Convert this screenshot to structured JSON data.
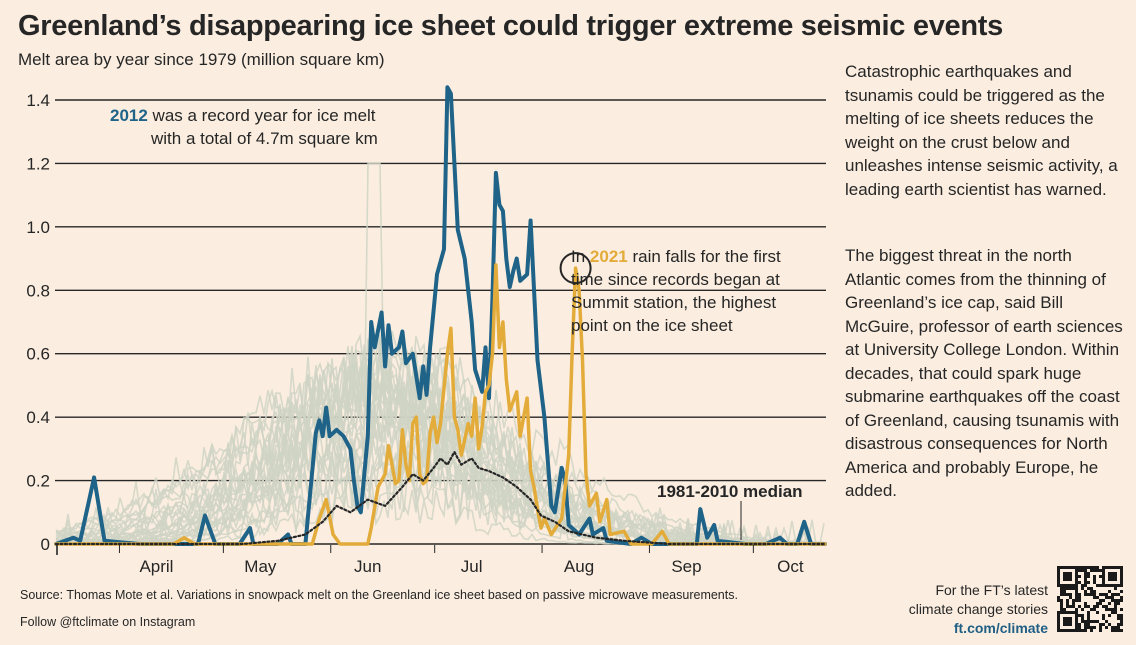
{
  "header": {
    "title": "Greenland’s disappearing ice sheet could trigger extreme seismic events",
    "subtitle": "Melt area by year since 1979 (million square km)"
  },
  "sidebar": {
    "paragraph_1": "Catastrophic earthquakes and tsunamis could be triggered as the melting of ice sheets reduces the weight on the crust below and unleashes intense seismic activity, a leading earth scientist has warned.",
    "paragraph_2": "The biggest threat in the north Atlantic comes from the thinning of Greenland’s ice cap, said Bill McGuire, professor of earth sciences at University College London. Within decades, that could spark huge submarine earthquakes off the coast of Greenland, causing tsunamis with disastrous consequences for North America and probably Europe, he added."
  },
  "footer": {
    "source": "Source: Thomas Mote et al. Variations in snowpack melt on the Greenland ice sheet based on passive microwave measurements.",
    "follow": "Follow @ftclimate on Instagram",
    "promo_line_1": "For the FT’s latest",
    "promo_line_2": "climate change stories",
    "promo_link": "ft.com/climate"
  },
  "colors": {
    "background": "#fbeee0",
    "series_2012": "#1f6388",
    "series_2021": "#e3ac3a",
    "other_years": "#cfd3c4",
    "median": "#262626"
  },
  "chart_data": {
    "type": "line",
    "ylim": [
      0,
      1.45
    ],
    "yticks": [
      {
        "value": 0,
        "label": "0"
      },
      {
        "value": 0.2,
        "label": "0.2"
      },
      {
        "value": 0.4,
        "label": "0.4"
      },
      {
        "value": 0.6,
        "label": "0.6"
      },
      {
        "value": 0.8,
        "label": "0.8"
      },
      {
        "value": 1.0,
        "label": "1.0"
      },
      {
        "value": 1.2,
        "label": "1.2"
      },
      {
        "value": 1.4,
        "label": "1.4"
      }
    ],
    "xlim": [
      "03-17",
      "10-25"
    ],
    "xticks": [
      {
        "date": "04-15",
        "label": "April"
      },
      {
        "date": "05-15",
        "label": "May"
      },
      {
        "date": "06-15",
        "label": "Jun"
      },
      {
        "date": "07-15",
        "label": "Jul"
      },
      {
        "date": "08-15",
        "label": "Aug"
      },
      {
        "date": "09-15",
        "label": "Sep"
      },
      {
        "date": "10-15",
        "label": "Oct"
      }
    ],
    "annotations": {
      "a2012_year": "2012",
      "a2012_line1": " was a record year for ice melt",
      "a2012_line2": "with a total of 4.7m square km",
      "a2021_prefix": "In ",
      "a2021_year": "2021",
      "a2021_line1": " rain falls for the first",
      "a2021_line2": "time since records began at",
      "a2021_line3": "Summit station, the highest",
      "a2021_line4": "point on the ice sheet",
      "median_label": "1981-2010 median",
      "highlight_point": {
        "date": "08-14",
        "value": 0.87
      }
    },
    "series": [
      {
        "name": "2012",
        "points": [
          [
            "03-17",
            0
          ],
          [
            "03-22",
            0.02
          ],
          [
            "03-24",
            0.01
          ],
          [
            "03-28",
            0.21
          ],
          [
            "03-31",
            0.01
          ],
          [
            "04-10",
            0
          ],
          [
            "04-20",
            0
          ],
          [
            "04-27",
            0
          ],
          [
            "04-29",
            0.09
          ],
          [
            "05-02",
            0
          ],
          [
            "05-09",
            0
          ],
          [
            "05-12",
            0.05
          ],
          [
            "05-13",
            0
          ],
          [
            "05-20",
            0
          ],
          [
            "05-23",
            0.03
          ],
          [
            "05-24",
            0
          ],
          [
            "05-28",
            0
          ],
          [
            "05-31",
            0.35
          ],
          [
            "06-01",
            0.39
          ],
          [
            "06-02",
            0.34
          ],
          [
            "06-03",
            0.43
          ],
          [
            "06-04",
            0.34
          ],
          [
            "06-06",
            0.36
          ],
          [
            "06-08",
            0.34
          ],
          [
            "06-10",
            0.3
          ],
          [
            "06-11",
            0.2
          ],
          [
            "06-12",
            0.12
          ],
          [
            "06-13",
            0.1
          ],
          [
            "06-15",
            0.34
          ],
          [
            "06-16",
            0.7
          ],
          [
            "06-17",
            0.62
          ],
          [
            "06-19",
            0.73
          ],
          [
            "06-20",
            0.56
          ],
          [
            "06-21",
            0.69
          ],
          [
            "06-22",
            0.6
          ],
          [
            "06-24",
            0.62
          ],
          [
            "06-25",
            0.67
          ],
          [
            "06-26",
            0.57
          ],
          [
            "06-28",
            0.6
          ],
          [
            "06-30",
            0.46
          ],
          [
            "07-01",
            0.56
          ],
          [
            "07-02",
            0.47
          ],
          [
            "07-03",
            0.62
          ],
          [
            "07-05",
            0.85
          ],
          [
            "07-07",
            0.93
          ],
          [
            "07-08",
            1.44
          ],
          [
            "07-09",
            1.42
          ],
          [
            "07-10",
            1.2
          ],
          [
            "07-11",
            0.99
          ],
          [
            "07-13",
            0.9
          ],
          [
            "07-15",
            0.7
          ],
          [
            "07-16",
            0.55
          ],
          [
            "07-18",
            0.48
          ],
          [
            "07-19",
            0.62
          ],
          [
            "07-20",
            0.46
          ],
          [
            "07-21",
            0.78
          ],
          [
            "07-22",
            1.17
          ],
          [
            "07-23",
            1.07
          ],
          [
            "07-24",
            1.05
          ],
          [
            "07-25",
            0.9
          ],
          [
            "07-26",
            0.81
          ],
          [
            "07-27",
            0.86
          ],
          [
            "07-28",
            0.9
          ],
          [
            "07-29",
            0.83
          ],
          [
            "07-31",
            0.85
          ],
          [
            "08-01",
            1.02
          ],
          [
            "08-03",
            0.58
          ],
          [
            "08-05",
            0.4
          ],
          [
            "08-07",
            0.12
          ],
          [
            "08-08",
            0.1
          ],
          [
            "08-10",
            0.24
          ],
          [
            "08-11",
            0.2
          ],
          [
            "08-12",
            0.06
          ],
          [
            "08-15",
            0.03
          ],
          [
            "08-18",
            0.08
          ],
          [
            "08-19",
            0.03
          ],
          [
            "08-22",
            0.05
          ],
          [
            "08-23",
            0.01
          ],
          [
            "08-30",
            0
          ],
          [
            "09-02",
            0.02
          ],
          [
            "09-05",
            0
          ],
          [
            "09-18",
            0
          ],
          [
            "09-19",
            0.11
          ],
          [
            "09-21",
            0.02
          ],
          [
            "09-23",
            0.06
          ],
          [
            "09-24",
            0.01
          ],
          [
            "10-02",
            0
          ],
          [
            "10-08",
            0
          ],
          [
            "10-12",
            0.02
          ],
          [
            "10-14",
            0
          ],
          [
            "10-17",
            0
          ],
          [
            "10-19",
            0.07
          ],
          [
            "10-21",
            0
          ],
          [
            "10-25",
            0
          ]
        ]
      },
      {
        "name": "2021",
        "points": [
          [
            "03-17",
            0
          ],
          [
            "04-20",
            0
          ],
          [
            "04-23",
            0.02
          ],
          [
            "04-26",
            0
          ],
          [
            "05-20",
            0
          ],
          [
            "05-30",
            0
          ],
          [
            "06-01",
            0.08
          ],
          [
            "06-03",
            0.14
          ],
          [
            "06-05",
            0.03
          ],
          [
            "06-07",
            0
          ],
          [
            "06-15",
            0
          ],
          [
            "06-16",
            0.05
          ],
          [
            "06-18",
            0.18
          ],
          [
            "06-20",
            0.22
          ],
          [
            "06-21",
            0.31
          ],
          [
            "06-22",
            0.25
          ],
          [
            "06-23",
            0.19
          ],
          [
            "06-24",
            0.2
          ],
          [
            "06-25",
            0.36
          ],
          [
            "06-26",
            0.25
          ],
          [
            "06-27",
            0.2
          ],
          [
            "06-28",
            0.38
          ],
          [
            "06-29",
            0.4
          ],
          [
            "06-30",
            0.22
          ],
          [
            "07-01",
            0.19
          ],
          [
            "07-02",
            0.2
          ],
          [
            "07-03",
            0.35
          ],
          [
            "07-04",
            0.4
          ],
          [
            "07-05",
            0.32
          ],
          [
            "07-06",
            0.38
          ],
          [
            "07-08",
            0.6
          ],
          [
            "07-09",
            0.68
          ],
          [
            "07-10",
            0.4
          ],
          [
            "07-11",
            0.36
          ],
          [
            "07-12",
            0.28
          ],
          [
            "07-14",
            0.38
          ],
          [
            "07-15",
            0.34
          ],
          [
            "07-16",
            0.46
          ],
          [
            "07-17",
            0.3
          ],
          [
            "07-18",
            0.37
          ],
          [
            "07-19",
            0.48
          ],
          [
            "07-20",
            0.5
          ],
          [
            "07-21",
            0.6
          ],
          [
            "07-22",
            0.88
          ],
          [
            "07-23",
            0.62
          ],
          [
            "07-24",
            0.7
          ],
          [
            "07-25",
            0.52
          ],
          [
            "07-26",
            0.42
          ],
          [
            "07-28",
            0.48
          ],
          [
            "07-29",
            0.34
          ],
          [
            "07-31",
            0.46
          ],
          [
            "08-01",
            0.23
          ],
          [
            "08-02",
            0.18
          ],
          [
            "08-03",
            0.11
          ],
          [
            "08-04",
            0.05
          ],
          [
            "08-05",
            0.08
          ],
          [
            "08-07",
            0.03
          ],
          [
            "08-10",
            0.08
          ],
          [
            "08-12",
            0.28
          ],
          [
            "08-13",
            0.6
          ],
          [
            "08-14",
            0.87
          ],
          [
            "08-15",
            0.8
          ],
          [
            "08-16",
            0.58
          ],
          [
            "08-17",
            0.22
          ],
          [
            "08-18",
            0.12
          ],
          [
            "08-20",
            0.16
          ],
          [
            "08-21",
            0.07
          ],
          [
            "08-23",
            0.14
          ],
          [
            "08-24",
            0.03
          ],
          [
            "08-28",
            0.04
          ],
          [
            "08-30",
            0
          ],
          [
            "09-05",
            0
          ],
          [
            "09-08",
            0.04
          ],
          [
            "09-10",
            0
          ],
          [
            "10-25",
            0
          ]
        ]
      },
      {
        "name": "1981-2010 median",
        "points": [
          [
            "03-17",
            0
          ],
          [
            "05-10",
            0
          ],
          [
            "05-20",
            0.01
          ],
          [
            "05-28",
            0.03
          ],
          [
            "06-02",
            0.07
          ],
          [
            "06-06",
            0.12
          ],
          [
            "06-10",
            0.1
          ],
          [
            "06-15",
            0.14
          ],
          [
            "06-20",
            0.12
          ],
          [
            "06-25",
            0.18
          ],
          [
            "06-28",
            0.22
          ],
          [
            "07-01",
            0.2
          ],
          [
            "07-04",
            0.24
          ],
          [
            "07-06",
            0.27
          ],
          [
            "07-08",
            0.25
          ],
          [
            "07-10",
            0.29
          ],
          [
            "07-12",
            0.25
          ],
          [
            "07-15",
            0.27
          ],
          [
            "07-17",
            0.24
          ],
          [
            "07-20",
            0.23
          ],
          [
            "07-24",
            0.21
          ],
          [
            "07-28",
            0.18
          ],
          [
            "08-01",
            0.14
          ],
          [
            "08-04",
            0.09
          ],
          [
            "08-08",
            0.07
          ],
          [
            "08-12",
            0.04
          ],
          [
            "08-16",
            0.03
          ],
          [
            "08-20",
            0.02
          ],
          [
            "08-28",
            0.01
          ],
          [
            "09-10",
            0
          ],
          [
            "10-25",
            0
          ]
        ]
      }
    ]
  }
}
